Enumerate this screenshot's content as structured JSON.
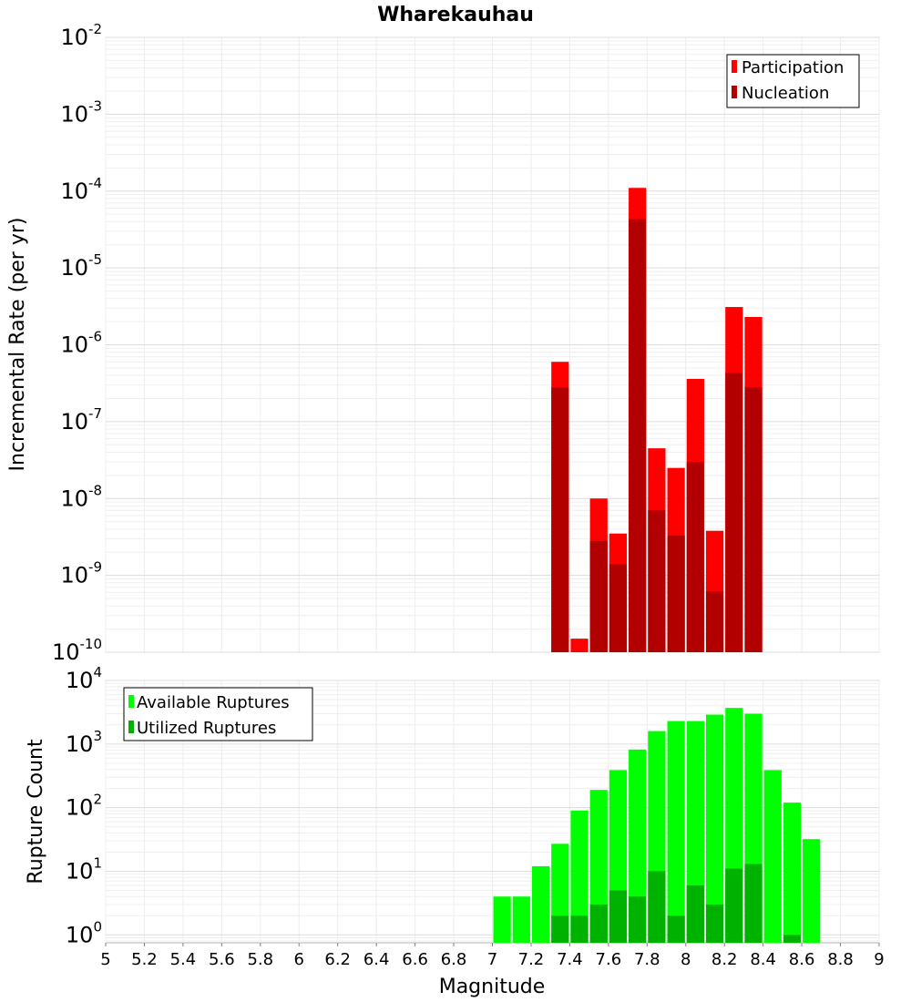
{
  "title": "Wharekauhau",
  "chart_data": [
    {
      "type": "bar",
      "name": "incremental-rate",
      "ylabel": "Incremental Rate (per yr)",
      "yscale": "log",
      "ylim": [
        1e-10,
        0.01
      ],
      "xlim": [
        5,
        9
      ],
      "bin_width": 0.1,
      "grid": true,
      "legend_position": "top-right",
      "series": [
        {
          "name": "Participation",
          "color": "#ff0000",
          "x": [
            7.35,
            7.45,
            7.55,
            7.65,
            7.75,
            7.85,
            7.95,
            8.05,
            8.15,
            8.25,
            8.35
          ],
          "values": [
            6e-07,
            1.5e-10,
            1e-08,
            3.5e-09,
            0.00011,
            4.5e-08,
            2.5e-08,
            3.6e-07,
            3.8e-09,
            3.1e-06,
            2.3e-06
          ]
        },
        {
          "name": "Nucleation",
          "color": "#b20000",
          "x": [
            7.35,
            7.55,
            7.65,
            7.75,
            7.85,
            7.95,
            8.05,
            8.15,
            8.25,
            8.35
          ],
          "values": [
            2.8e-07,
            2.8e-09,
            1.4e-09,
            4.3e-05,
            7e-09,
            3.3e-09,
            3e-08,
            6.2e-10,
            4.3e-07,
            2.8e-07
          ]
        }
      ]
    },
    {
      "type": "bar",
      "name": "rupture-count",
      "ylabel": "Rupture Count",
      "xlabel": "Magnitude",
      "yscale": "log",
      "ylim": [
        0.75,
        10000
      ],
      "xlim": [
        5,
        9
      ],
      "bin_width": 0.1,
      "grid": true,
      "legend_position": "top-left",
      "x_ticks": [
        "5",
        "5.2",
        "5.4",
        "5.6",
        "5.8",
        "6",
        "6.2",
        "6.4",
        "6.6",
        "6.8",
        "7",
        "7.2",
        "7.4",
        "7.6",
        "7.8",
        "8",
        "8.2",
        "8.4",
        "8.6",
        "8.8",
        "9"
      ],
      "series": [
        {
          "name": "Available Ruptures",
          "color": "#00ff00",
          "x": [
            7.05,
            7.15,
            7.25,
            7.35,
            7.45,
            7.55,
            7.65,
            7.75,
            7.85,
            7.95,
            8.05,
            8.15,
            8.25,
            8.35,
            8.45,
            8.55,
            8.65
          ],
          "values": [
            4,
            4,
            12,
            27,
            90,
            190,
            390,
            820,
            1600,
            2300,
            2300,
            2900,
            3700,
            3000,
            390,
            120,
            32
          ]
        },
        {
          "name": "Utilized Ruptures",
          "color": "#00b200",
          "x": [
            7.35,
            7.45,
            7.55,
            7.65,
            7.75,
            7.85,
            7.95,
            8.05,
            8.15,
            8.25,
            8.35,
            8.55
          ],
          "values": [
            2,
            2,
            3,
            5,
            4,
            10,
            2,
            6,
            3,
            11,
            13,
            1
          ]
        }
      ]
    }
  ]
}
